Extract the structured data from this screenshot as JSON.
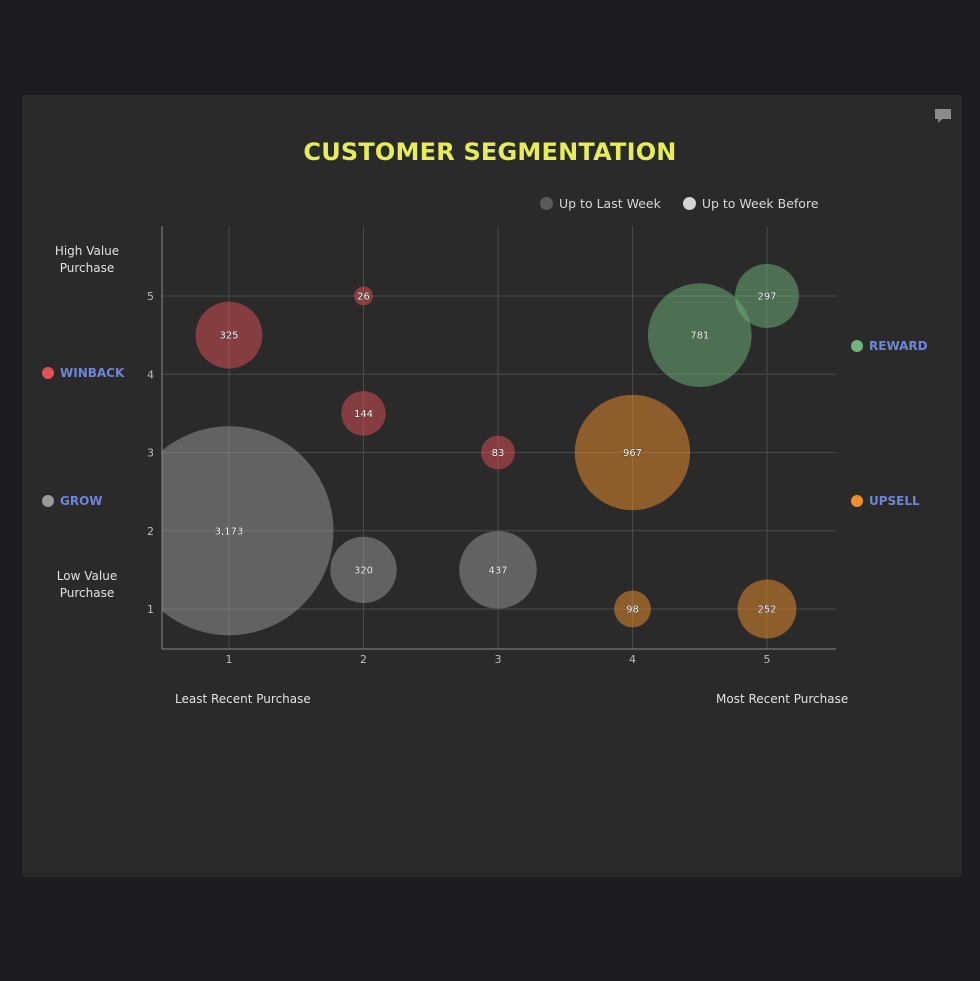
{
  "title": "CUSTOMER SEGMENTATION",
  "legend": [
    {
      "label": "Up to Last Week",
      "color": "#5a5a5a"
    },
    {
      "label": "Up to Week Before",
      "color": "#d4d4d4"
    }
  ],
  "axis_labels": {
    "y_high": "High Value Purchase",
    "y_low": "Low Value Purchase",
    "x_low": "Least Recent Purchase",
    "x_high": "Most Recent Purchase"
  },
  "segments": {
    "winback": {
      "label": "WINBACK",
      "color": "#e0505a"
    },
    "grow": {
      "label": "GROW",
      "color": "#9a9a9a"
    },
    "reward": {
      "label": "REWARD",
      "color": "#6fb47a"
    },
    "upsell": {
      "label": "UPSELL",
      "color": "#ef8f2e"
    }
  },
  "icons": {
    "comment": "comment-icon"
  },
  "chart_data": {
    "type": "scatter",
    "title": "CUSTOMER SEGMENTATION",
    "xlim": [
      0.5,
      5.5
    ],
    "ylim": [
      0.5,
      5.9
    ],
    "x_ticks": [
      1,
      2,
      3,
      4,
      5
    ],
    "y_ticks": [
      1,
      2,
      3,
      4,
      5
    ],
    "grid": true,
    "legend_position": "top-right",
    "points": [
      {
        "x": 1,
        "y": 4.5,
        "value": 325,
        "label": "325",
        "segment": "winback"
      },
      {
        "x": 2,
        "y": 5,
        "value": 26,
        "label": "26",
        "segment": "winback"
      },
      {
        "x": 2,
        "y": 3.5,
        "value": 144,
        "label": "144",
        "segment": "winback"
      },
      {
        "x": 3,
        "y": 3,
        "value": 83,
        "label": "83",
        "segment": "winback"
      },
      {
        "x": 1,
        "y": 2,
        "value": 3173,
        "label": "3,173",
        "segment": "grow"
      },
      {
        "x": 2,
        "y": 1.5,
        "value": 320,
        "label": "320",
        "segment": "grow"
      },
      {
        "x": 3,
        "y": 1.5,
        "value": 437,
        "label": "437",
        "segment": "grow"
      },
      {
        "x": 4.5,
        "y": 4.5,
        "value": 781,
        "label": "781",
        "segment": "reward"
      },
      {
        "x": 5,
        "y": 5,
        "value": 297,
        "label": "297",
        "segment": "reward"
      },
      {
        "x": 4,
        "y": 3,
        "value": 967,
        "label": "967",
        "segment": "upsell"
      },
      {
        "x": 4,
        "y": 1,
        "value": 98,
        "label": "98",
        "segment": "upsell"
      },
      {
        "x": 5,
        "y": 1,
        "value": 252,
        "label": "252",
        "segment": "upsell"
      }
    ]
  }
}
